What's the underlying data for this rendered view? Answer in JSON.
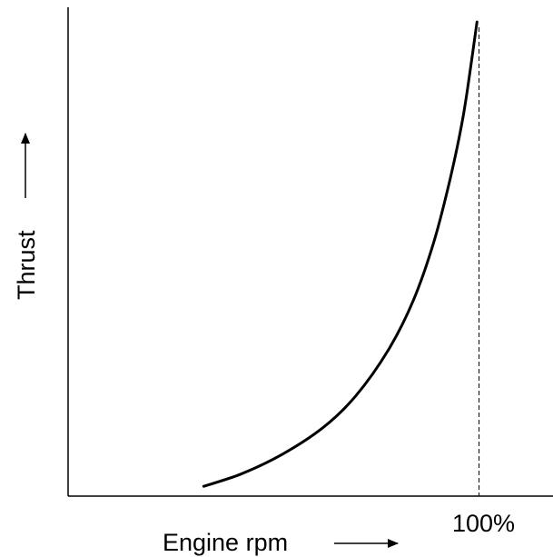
{
  "chart_data": {
    "type": "line",
    "xlabel": "Engine rpm",
    "ylabel": "Thrust",
    "x_marker": {
      "value": 100,
      "label": "100%",
      "style": "dashed"
    },
    "xlim": [
      0,
      118
    ],
    "ylim": [
      0,
      100
    ],
    "series": [
      {
        "x": [
          33,
          42,
          52,
          62,
          70,
          78,
          84,
          89,
          93,
          96,
          98,
          99.5
        ],
        "y": [
          2,
          4.5,
          8.5,
          14,
          20.5,
          30,
          40,
          52,
          65,
          77,
          88,
          97
        ]
      }
    ],
    "grid": false,
    "colors": {
      "line": "#000000",
      "axis": "#000000",
      "background": "#ffffff"
    }
  }
}
